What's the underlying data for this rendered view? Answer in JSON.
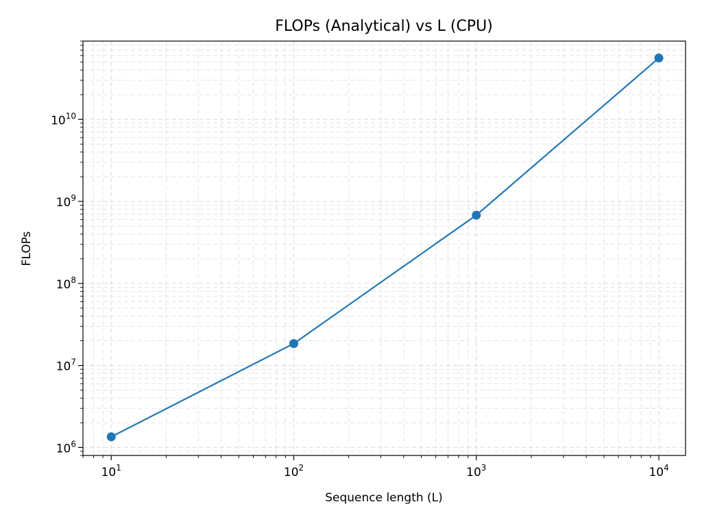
{
  "chart_data": {
    "type": "line",
    "title": "FLOPs (Analytical) vs L (CPU)",
    "xlabel": "Sequence length (L)",
    "ylabel": "FLOPs",
    "xscale": "log",
    "yscale": "log",
    "xlim": [
      7,
      14000
    ],
    "ylim": [
      800000,
      90000000000
    ],
    "grid": "both (major and minor, dashed)",
    "x_ticks": [
      {
        "base": "10",
        "exp": "1",
        "value": 10
      },
      {
        "base": "10",
        "exp": "2",
        "value": 100
      },
      {
        "base": "10",
        "exp": "3",
        "value": 1000
      },
      {
        "base": "10",
        "exp": "4",
        "value": 10000
      }
    ],
    "y_ticks": [
      {
        "base": "10",
        "exp": "6",
        "value": 1000000
      },
      {
        "base": "10",
        "exp": "7",
        "value": 10000000
      },
      {
        "base": "10",
        "exp": "8",
        "value": 100000000
      },
      {
        "base": "10",
        "exp": "9",
        "value": 1000000000
      },
      {
        "base": "10",
        "exp": "10",
        "value": 10000000000
      }
    ],
    "series": [
      {
        "color": "#1f77b4",
        "marker": "circle",
        "x": [
          10,
          100,
          1000,
          10000
        ],
        "y": [
          1350000,
          18500000,
          680000000,
          56000000000
        ]
      }
    ]
  }
}
